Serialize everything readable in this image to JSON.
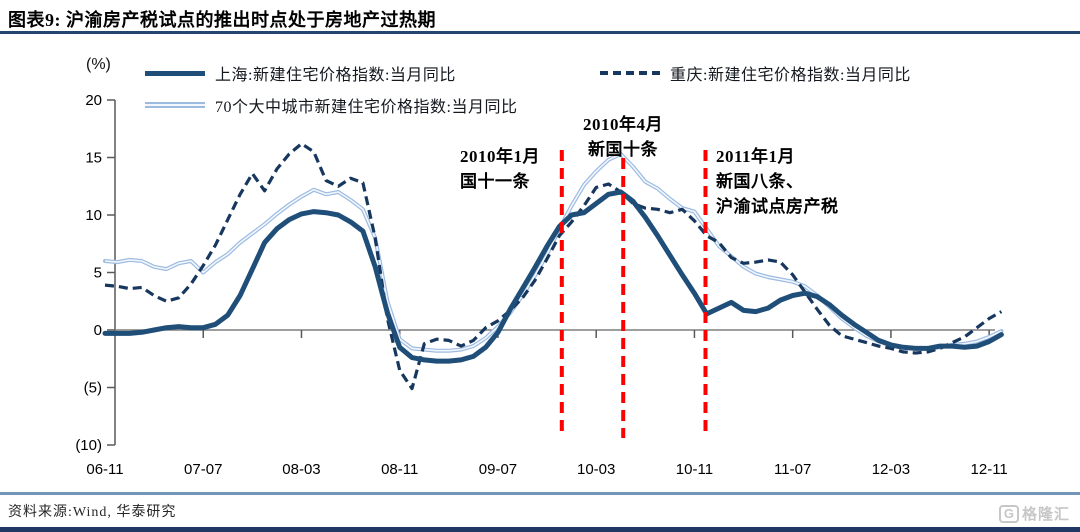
{
  "header": {
    "title": "图表9:  沪渝房产税试点的推出时点处于房地产过热期"
  },
  "y_unit_label": "(%)",
  "footer": {
    "source": "资料来源:Wind, 华泰研究",
    "logo_g": "G",
    "logo_text": "格隆汇"
  },
  "chart_data": {
    "type": "line",
    "title": "沪渝房产税试点的推出时点处于房地产过热期",
    "x_start_month": "2006-11",
    "x_frequency": "monthly",
    "x_tick_labels": [
      "06-11",
      "07-07",
      "08-03",
      "08-11",
      "09-07",
      "10-03",
      "10-11",
      "11-07",
      "12-03",
      "12-11"
    ],
    "x_tick_month_indices": [
      0,
      8,
      16,
      24,
      32,
      40,
      48,
      56,
      64,
      72
    ],
    "y_ticks": [
      {
        "v": 20,
        "label": "20"
      },
      {
        "v": 15,
        "label": "15"
      },
      {
        "v": 10,
        "label": "10"
      },
      {
        "v": 5,
        "label": "5"
      },
      {
        "v": 0,
        "label": "0"
      },
      {
        "v": -5,
        "label": "(5)"
      },
      {
        "v": -10,
        "label": "(10)"
      }
    ],
    "ylim": [
      -10,
      20
    ],
    "grid": "none",
    "legend_position": "top",
    "series": [
      {
        "name": "上海:新建住宅价格指数:当月同比",
        "style": "solid-thick",
        "color": "#1F4E79",
        "values": [
          -0.3,
          -0.3,
          -0.3,
          -0.2,
          0.0,
          0.2,
          0.3,
          0.2,
          0.2,
          0.5,
          1.3,
          3.0,
          5.3,
          7.6,
          8.8,
          9.6,
          10.1,
          10.3,
          10.2,
          10.0,
          9.4,
          8.6,
          5.5,
          1.5,
          -1.5,
          -2.4,
          -2.6,
          -2.7,
          -2.7,
          -2.6,
          -2.3,
          -1.5,
          -0.2,
          1.8,
          3.6,
          5.4,
          7.3,
          9.0,
          10.0,
          10.2,
          11.0,
          11.8,
          12.0,
          11.2,
          9.8,
          8.2,
          6.5,
          4.8,
          3.2,
          1.4,
          1.9,
          2.4,
          1.7,
          1.6,
          1.9,
          2.6,
          3.0,
          3.2,
          2.9,
          2.2,
          1.3,
          0.5,
          -0.2,
          -0.9,
          -1.3,
          -1.5,
          -1.6,
          -1.6,
          -1.4,
          -1.4,
          -1.5,
          -1.4,
          -1.0,
          -0.4
        ]
      },
      {
        "name": "重庆:新建住宅价格指数:当月同比",
        "style": "dashed",
        "color": "#17375E",
        "values": [
          3.9,
          3.8,
          3.6,
          3.7,
          3.0,
          2.5,
          2.8,
          4.0,
          5.6,
          7.4,
          9.6,
          11.8,
          13.6,
          12.1,
          14.0,
          15.3,
          16.2,
          15.5,
          13.0,
          12.5,
          13.2,
          12.8,
          8.0,
          1.0,
          -3.5,
          -5.1,
          -1.2,
          -0.8,
          -0.9,
          -1.4,
          -0.9,
          0.2,
          0.8,
          1.7,
          2.8,
          4.3,
          6.2,
          8.2,
          9.4,
          10.8,
          12.4,
          12.7,
          12.0,
          11.0,
          10.6,
          10.5,
          10.2,
          10.5,
          9.5,
          8.2,
          7.6,
          6.3,
          5.8,
          5.9,
          6.1,
          5.9,
          4.8,
          3.3,
          1.8,
          0.4,
          -0.5,
          -0.8,
          -1.1,
          -1.4,
          -1.6,
          -1.9,
          -2.0,
          -1.9,
          -1.6,
          -1.1,
          -0.6,
          0.2,
          1.0,
          1.6
        ]
      },
      {
        "name": "70个大中城市新建住宅价格指数:当月同比",
        "style": "light-double",
        "color": "#9DBBE0",
        "values": [
          6.0,
          5.9,
          6.1,
          6.0,
          5.5,
          5.3,
          5.8,
          6.0,
          5.0,
          5.9,
          6.6,
          7.6,
          8.4,
          9.2,
          10.1,
          10.9,
          11.6,
          12.2,
          11.8,
          12.0,
          11.3,
          10.5,
          8.0,
          2.5,
          -0.8,
          -1.6,
          -1.7,
          -1.8,
          -1.8,
          -1.7,
          -1.4,
          -0.7,
          0.3,
          1.5,
          3.0,
          4.7,
          6.6,
          8.8,
          10.8,
          12.6,
          13.8,
          14.8,
          15.3,
          14.2,
          12.9,
          12.3,
          11.4,
          10.6,
          10.3,
          8.8,
          7.3,
          6.4,
          5.5,
          4.9,
          4.6,
          4.4,
          4.2,
          3.8,
          3.0,
          2.0,
          1.0,
          0.2,
          -0.5,
          -1.0,
          -1.3,
          -1.5,
          -1.6,
          -1.6,
          -1.5,
          -1.3,
          -1.2,
          -1.0,
          -0.6,
          -0.1
        ]
      }
    ],
    "event_lines": {
      "color": "#FF0000",
      "items": [
        {
          "month_index": 37.2,
          "date": "2010-01"
        },
        {
          "month_index": 42.2,
          "date": "2010-04"
        },
        {
          "month_index": 48.9,
          "date": "2011-01"
        }
      ]
    },
    "annotations": [
      {
        "lines": [
          "2010年1月",
          "国十一条"
        ]
      },
      {
        "lines": [
          "2010年4月",
          "新国十条"
        ]
      },
      {
        "lines": [
          "2011年1月",
          "新国八条、",
          "沪渝试点房产税"
        ]
      }
    ]
  }
}
